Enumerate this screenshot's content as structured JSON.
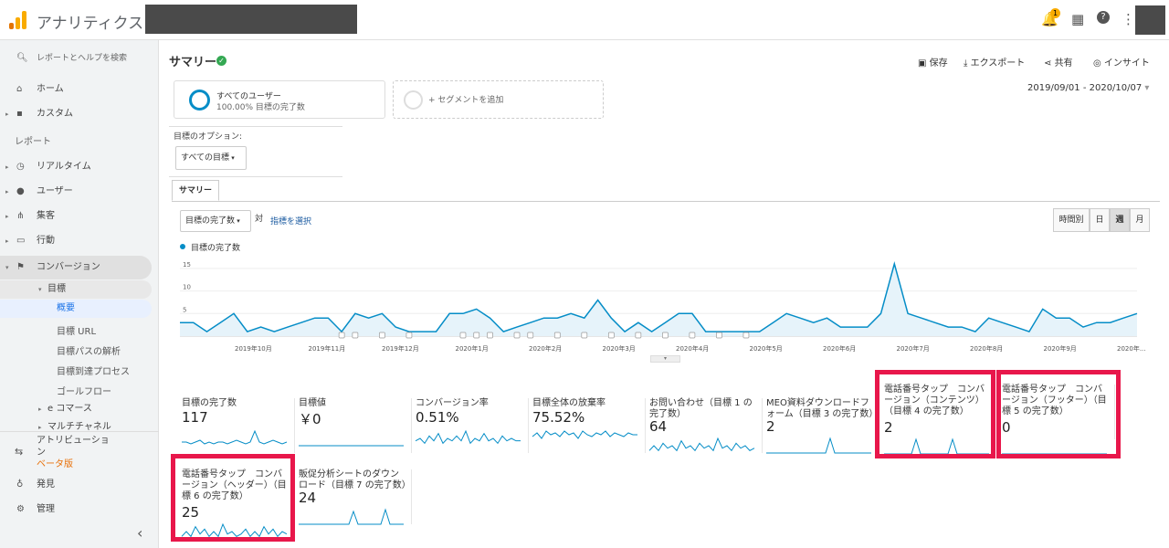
{
  "header": {
    "app_title": "アナリティクス",
    "notif_count": "1"
  },
  "sidebar": {
    "search": "レポートとヘルプを検索",
    "home": "ホーム",
    "custom": "カスタム",
    "reports_header": "レポート",
    "realtime": "リアルタイム",
    "users": "ユーザー",
    "acquisition": "集客",
    "behavior": "行動",
    "conversions": "コンバージョン",
    "goals": "目標",
    "goal_sub": [
      "概要",
      "目標 URL",
      "目標パスの解析",
      "目標到達プロセス",
      "ゴールフロー"
    ],
    "ecommerce": "e コマース",
    "multichannel": "マルチチャネル",
    "attribution_1": "アトリビューショ",
    "attribution_2": "ン",
    "beta": "ベータ版",
    "discover": "発見",
    "admin": "管理",
    "collapse": "‹"
  },
  "page": {
    "title": "サマリー",
    "save": "保存",
    "export": "エクスポート",
    "share": "共有",
    "insight": "インサイト",
    "segment_title": "すべてのユーザー",
    "segment_sub": "100.00% 目標の完了数",
    "add_segment": "+ セグメントを追加",
    "date_range": "2019/09/01 - 2020/10/07",
    "goal_option_label": "目標のオプション:",
    "goal_option_value": "すべての目標",
    "tab": "サマリー",
    "metric_select": "目標の完了数",
    "vs": "対",
    "choose_metric": "指標を選択",
    "gran": [
      "時間別",
      "日",
      "週",
      "月"
    ],
    "legend": "目標の完了数"
  },
  "chart_data": {
    "type": "line",
    "series": [
      {
        "name": "目標の完了数",
        "values": [
          3,
          3,
          1,
          3,
          5,
          1,
          2,
          1,
          2,
          3,
          4,
          4,
          1,
          5,
          4,
          5,
          2,
          1,
          1,
          1,
          5,
          5,
          6,
          4,
          1,
          2,
          3,
          4,
          4,
          5,
          4,
          8,
          4,
          1,
          3,
          1,
          3,
          5,
          5,
          1,
          1,
          1,
          1,
          1,
          3,
          5,
          4,
          3,
          4,
          2,
          2,
          2,
          5,
          16,
          5,
          4,
          3,
          2,
          2,
          1,
          4,
          3,
          2,
          1,
          6,
          4,
          4,
          2,
          3,
          3,
          4,
          5
        ]
      }
    ],
    "y_ticks": [
      "15",
      "10",
      "5"
    ],
    "ylim": [
      0,
      17
    ],
    "x_ticks": [
      "2019年10月",
      "2019年11月",
      "2019年12月",
      "2020年1月",
      "2020年2月",
      "2020年3月",
      "2020年4月",
      "2020年5月",
      "2020年6月",
      "2020年7月",
      "2020年8月",
      "2020年9月",
      "2020年..."
    ],
    "grid": true
  },
  "cards": [
    {
      "title": "目標の完了数",
      "value": "117"
    },
    {
      "title": "目標値",
      "value": "￥0"
    },
    {
      "title": "コンバージョン率",
      "value": "0.51%"
    },
    {
      "title": "目標全体の放棄率",
      "value": "75.52%"
    },
    {
      "title": "お問い合わせ（目標 1 の完了数）",
      "value": "64"
    },
    {
      "title": "MEO資料ダウンロードフォーム（目標 3 の完了数）",
      "value": "2"
    },
    {
      "title": "電話番号タップ　コンバージョン（コンテンツ）（目標 4 の完了数）",
      "value": "2"
    },
    {
      "title": "電話番号タップ　コンバージョン（フッター）（目標 5 の完了数）",
      "value": "0"
    },
    {
      "title": "電話番号タップ　コンバージョン（ヘッダー）（目標 6 の完了数）",
      "value": "25"
    },
    {
      "title": "販促分析シートのダウンロード（目標 7 の完了数）",
      "value": "24"
    }
  ]
}
